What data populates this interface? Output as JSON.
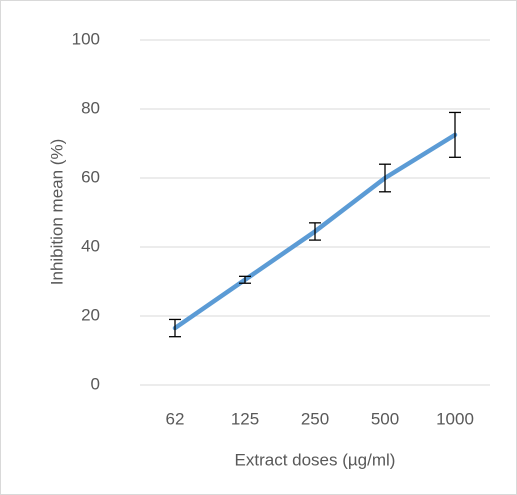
{
  "chart_data": {
    "type": "line",
    "xlabel": "Extract doses (µg/ml)",
    "ylabel": "Inhibition mean (%)",
    "categories": [
      "62",
      "125",
      "250",
      "500",
      "1000"
    ],
    "values": [
      16.5,
      30.5,
      44.5,
      60,
      72.5
    ],
    "errors": [
      2.5,
      1,
      2.5,
      4,
      6.5
    ],
    "color": "#5b9bd5",
    "ylim": [
      0,
      100
    ],
    "yticks": [
      0,
      20,
      40,
      60,
      80,
      100
    ],
    "grid": true
  }
}
